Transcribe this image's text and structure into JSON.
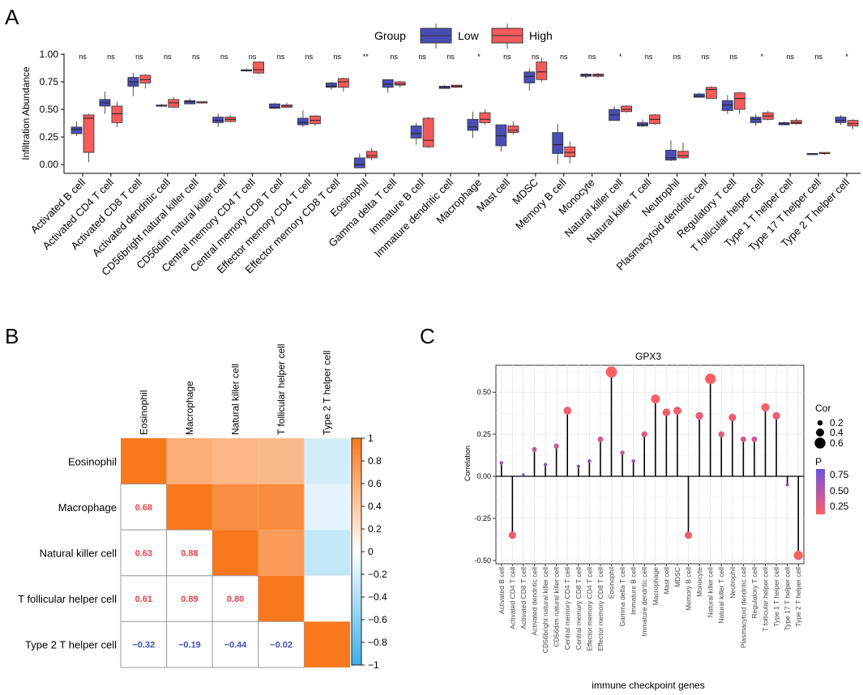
{
  "panels": {
    "a": "A",
    "b": "B",
    "c": "C"
  },
  "chart_data": [
    {
      "type": "box",
      "panel": "A",
      "ylabel": "Infiltration Abundance",
      "ylim": [
        -0.08,
        1.0
      ],
      "yticks": [
        0.0,
        0.25,
        0.5,
        0.75,
        1.0
      ],
      "ytick_labels": [
        "0.00",
        "0.25",
        "0.50",
        "0.75",
        "1.00"
      ],
      "legend": {
        "title": "Group",
        "items": [
          {
            "label": "Low",
            "color": "#4a4db3"
          },
          {
            "label": "High",
            "color": "#f35b5b"
          }
        ]
      },
      "categories": [
        "Activated B cell",
        "Activated CD4 T cell",
        "Activated CD8 T cell",
        "Activated dendritic cell",
        "CD56bright natural killer cell",
        "CD56dim natural killer cell",
        "Central memory CD4 T cell",
        "Central memory CD8 T cell",
        "Effector memory CD4 T cell",
        "Effector memory CD8 T cell",
        "Eosinophil",
        "Gamma delta T cell",
        "Immature  B cell",
        "Immature dendritic cell",
        "Macrophage",
        "Mast cell",
        "MDSC",
        "Memory B cell",
        "Monocyte",
        "Natural killer cell",
        "Natural killer T cell",
        "Neutrophil",
        "Plasmacytoid dendritic cell",
        "Regulatory T cell",
        "T follicular helper cell",
        "Type 1 T helper cell",
        "Type 17 T helper cell",
        "Type 2 T helper cell"
      ],
      "significance": [
        "ns",
        "ns",
        "ns",
        "ns",
        "ns",
        "ns",
        "ns",
        "ns",
        "ns",
        "ns",
        "**",
        "ns",
        "ns",
        "ns",
        "*",
        "ns",
        "ns",
        "ns",
        "ns",
        "*",
        "ns",
        "ns",
        "ns",
        "ns",
        "*",
        "ns",
        "ns",
        "*"
      ],
      "series": [
        {
          "name": "Low",
          "color": "#4a4db3",
          "boxes": [
            [
              0.26,
              0.28,
              0.32,
              0.34,
              0.39
            ],
            [
              0.46,
              0.53,
              0.56,
              0.59,
              0.66
            ],
            [
              0.62,
              0.71,
              0.75,
              0.79,
              0.83
            ],
            [
              0.52,
              0.53,
              0.53,
              0.54,
              0.55
            ],
            [
              0.55,
              0.55,
              0.57,
              0.58,
              0.6
            ],
            [
              0.34,
              0.38,
              0.4,
              0.43,
              0.46
            ],
            [
              0.84,
              0.85,
              0.85,
              0.86,
              0.87
            ],
            [
              0.5,
              0.51,
              0.52,
              0.55,
              0.56
            ],
            [
              0.34,
              0.36,
              0.38,
              0.42,
              0.49
            ],
            [
              0.68,
              0.7,
              0.71,
              0.74,
              0.75
            ],
            [
              -0.03,
              -0.03,
              0.0,
              0.06,
              0.1
            ],
            [
              0.65,
              0.7,
              0.73,
              0.77,
              0.77
            ],
            [
              0.18,
              0.24,
              0.28,
              0.35,
              0.38
            ],
            [
              0.69,
              0.69,
              0.7,
              0.71,
              0.72
            ],
            [
              0.24,
              0.31,
              0.34,
              0.41,
              0.48
            ],
            [
              0.12,
              0.17,
              0.26,
              0.36,
              0.36
            ],
            [
              0.67,
              0.74,
              0.8,
              0.84,
              0.87
            ],
            [
              0.0,
              0.1,
              0.18,
              0.29,
              0.37
            ],
            [
              0.78,
              0.8,
              0.81,
              0.82,
              0.83
            ],
            [
              0.4,
              0.4,
              0.45,
              0.5,
              0.53
            ],
            [
              0.34,
              0.35,
              0.36,
              0.38,
              0.41
            ],
            [
              0.03,
              0.04,
              0.06,
              0.13,
              0.22
            ],
            [
              0.61,
              0.61,
              0.62,
              0.64,
              0.65
            ],
            [
              0.46,
              0.49,
              0.54,
              0.58,
              0.63
            ],
            [
              0.35,
              0.38,
              0.41,
              0.43,
              0.46
            ],
            [
              0.36,
              0.36,
              0.37,
              0.38,
              0.39
            ],
            [
              0.1,
              0.1,
              0.1,
              0.1,
              0.1
            ],
            [
              0.36,
              0.38,
              0.4,
              0.43,
              0.45
            ]
          ]
        },
        {
          "name": "High",
          "color": "#f35b5b",
          "boxes": [
            [
              0.02,
              0.11,
              0.42,
              0.45,
              0.46
            ],
            [
              0.34,
              0.38,
              0.46,
              0.53,
              0.57
            ],
            [
              0.69,
              0.74,
              0.77,
              0.81,
              0.82
            ],
            [
              0.51,
              0.52,
              0.56,
              0.59,
              0.61
            ],
            [
              0.55,
              0.56,
              0.56,
              0.57,
              0.57
            ],
            [
              0.38,
              0.39,
              0.41,
              0.43,
              0.45
            ],
            [
              0.82,
              0.83,
              0.86,
              0.93,
              0.93
            ],
            [
              0.52,
              0.52,
              0.53,
              0.54,
              0.56
            ],
            [
              0.35,
              0.37,
              0.4,
              0.44,
              0.45
            ],
            [
              0.66,
              0.7,
              0.75,
              0.78,
              0.79
            ],
            [
              0.04,
              0.06,
              0.08,
              0.12,
              0.15
            ],
            [
              0.7,
              0.72,
              0.73,
              0.75,
              0.76
            ],
            [
              0.15,
              0.16,
              0.22,
              0.42,
              0.43
            ],
            [
              0.7,
              0.7,
              0.71,
              0.72,
              0.72
            ],
            [
              0.36,
              0.38,
              0.41,
              0.47,
              0.5
            ],
            [
              0.27,
              0.29,
              0.31,
              0.35,
              0.39
            ],
            [
              0.75,
              0.77,
              0.84,
              0.93,
              0.97
            ],
            [
              0.01,
              0.07,
              0.11,
              0.16,
              0.21
            ],
            [
              0.79,
              0.8,
              0.81,
              0.82,
              0.83
            ],
            [
              0.47,
              0.48,
              0.5,
              0.53,
              0.54
            ],
            [
              0.36,
              0.37,
              0.41,
              0.45,
              0.46
            ],
            [
              0.05,
              0.06,
              0.08,
              0.12,
              0.2
            ],
            [
              0.6,
              0.6,
              0.68,
              0.7,
              0.71
            ],
            [
              0.46,
              0.5,
              0.6,
              0.65,
              0.66
            ],
            [
              0.4,
              0.41,
              0.44,
              0.47,
              0.49
            ],
            [
              0.36,
              0.37,
              0.38,
              0.4,
              0.42
            ],
            [
              0.09,
              0.1,
              0.1,
              0.11,
              0.11
            ],
            [
              0.32,
              0.35,
              0.37,
              0.4,
              0.41
            ]
          ]
        }
      ]
    },
    {
      "type": "heatmap",
      "panel": "B",
      "labels": [
        "Eosinophil",
        "Macrophage",
        "Natural killer cell",
        "T follicular helper cell",
        "Type 2 T helper cell"
      ],
      "matrix": [
        [
          1.0,
          0.68,
          0.63,
          0.61,
          -0.32
        ],
        [
          0.68,
          1.0,
          0.88,
          0.89,
          -0.19
        ],
        [
          0.63,
          0.88,
          1.0,
          0.8,
          -0.44
        ],
        [
          0.61,
          0.89,
          0.8,
          1.0,
          -0.02
        ],
        [
          -0.32,
          -0.19,
          -0.44,
          -0.02,
          1.0
        ]
      ],
      "lower_labels": [
        [
          "",
          "",
          "",
          "",
          ""
        ],
        [
          "0.68",
          "",
          "",
          "",
          ""
        ],
        [
          "0.63",
          "0.88",
          "",
          "",
          ""
        ],
        [
          "0.61",
          "0.89",
          "0.80",
          "",
          ""
        ],
        [
          "−0.32",
          "−0.19",
          "−0.44",
          "−0.02",
          ""
        ]
      ],
      "colorbar": {
        "ticks": [
          "1",
          "0.8",
          "0.6",
          "0.4",
          "0.2",
          "0",
          "−0.2",
          "−0.4",
          "−0.6",
          "−0.8",
          "−1"
        ],
        "range": [
          -1,
          1
        ]
      },
      "colors": {
        "positive": "#f8781e",
        "negative": "#3cb0e6",
        "pos_text": "#e8424c",
        "neg_text": "#3f51b5"
      }
    },
    {
      "type": "lollipop",
      "panel": "C",
      "title": "GPX3",
      "xlabel": "immune checkpoint genes",
      "ylabel": "Correlation",
      "ylim": [
        -0.52,
        0.66
      ],
      "yticks": [
        -0.5,
        -0.25,
        0.0,
        0.25,
        0.5
      ],
      "ytick_labels": [
        "-0.50",
        "-0.25",
        "0.00",
        "0.25",
        "0.50"
      ],
      "categories": [
        "Activated B cell",
        "Activated CD4 T cell",
        "Activated CD8 T cell",
        "Activated dendritic cell",
        "CD56bright natural killer cell",
        "CD56dim natural killer cell",
        "Central memory CD4 T cell",
        "Central memory CD8 T cell",
        "Effector memory CD4 T cell",
        "Effector memory CD8 T cell",
        "Eosinophil",
        "Gamma delta T cell",
        "Immature  B cell",
        "Immature dendritic cell",
        "Macrophage",
        "Mast cell",
        "MDSC",
        "Memory B cell",
        "Monocyte",
        "Natural killer cell",
        "Natural killer T cell",
        "Neutrophil",
        "Plasmacytoid dendritic cell",
        "Regulatory T cell",
        "T follicular helper cell",
        "Type 1 T helper cell",
        "Type 17 T helper cell",
        "Type 2 T helper cell"
      ],
      "values": [
        0.08,
        -0.35,
        0.01,
        0.16,
        0.07,
        0.18,
        0.39,
        0.06,
        0.09,
        0.22,
        0.62,
        0.14,
        0.09,
        0.25,
        0.46,
        0.38,
        0.39,
        -0.35,
        0.36,
        0.58,
        0.25,
        0.35,
        0.22,
        0.22,
        0.41,
        0.36,
        -0.05,
        -0.47
      ],
      "p": [
        0.7,
        0.1,
        0.95,
        0.45,
        0.75,
        0.45,
        0.08,
        0.8,
        0.7,
        0.3,
        0.0,
        0.4,
        0.7,
        0.2,
        0.02,
        0.08,
        0.08,
        0.1,
        0.1,
        0.0,
        0.2,
        0.1,
        0.3,
        0.3,
        0.05,
        0.1,
        0.85,
        0.01
      ],
      "legend": {
        "size_title": "Cor",
        "size_labels": [
          "0.2",
          "0.4",
          "0.6"
        ],
        "color_title": "P",
        "color_labels": [
          "0.75",
          "0.50",
          "0.25"
        ]
      },
      "colors": {
        "low_p": "#fc5f63",
        "high_p": "#6b55d6"
      }
    }
  ]
}
